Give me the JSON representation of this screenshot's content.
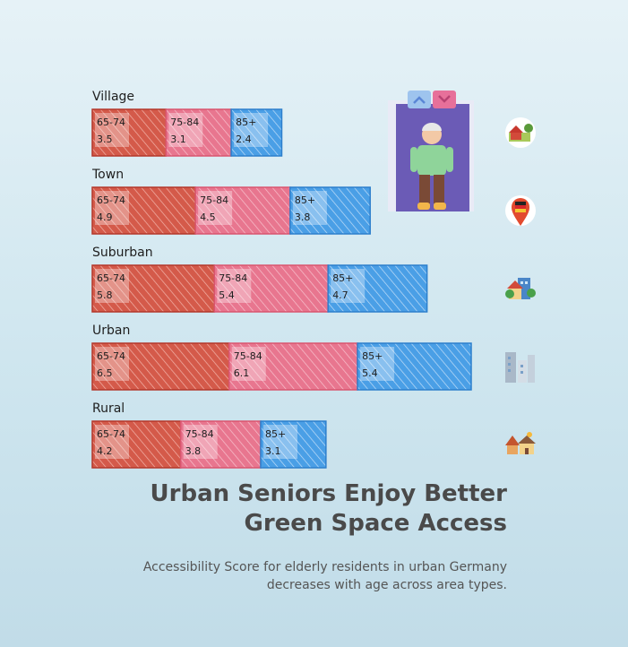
{
  "chart_data": {
    "type": "bar",
    "orientation": "horizontal",
    "stacked": true,
    "title": "Urban Seniors Enjoy Better Green Space Access",
    "subtitle": "Accessibility Score for elderly residents in urban Germany decreases with age across area types.",
    "categories": [
      "Village",
      "Town",
      "Suburban",
      "Urban",
      "Rural"
    ],
    "series": [
      {
        "name": "65-74",
        "color": "#d45a4a",
        "values": [
          3.5,
          4.9,
          5.8,
          6.5,
          4.2
        ]
      },
      {
        "name": "75-84",
        "color": "#e8768f",
        "values": [
          3.1,
          4.5,
          5.4,
          6.1,
          3.8
        ]
      },
      {
        "name": "85+",
        "color": "#4a9fe6",
        "values": [
          2.4,
          3.8,
          4.7,
          5.4,
          3.1
        ]
      }
    ],
    "icons": [
      "farm-icon",
      "location-pin-icon",
      "suburban-houses-icon",
      "city-buildings-icon",
      "rural-house-icon"
    ],
    "decoration": "elderly-person-elevator-icon",
    "grid": false,
    "legend": "none"
  }
}
